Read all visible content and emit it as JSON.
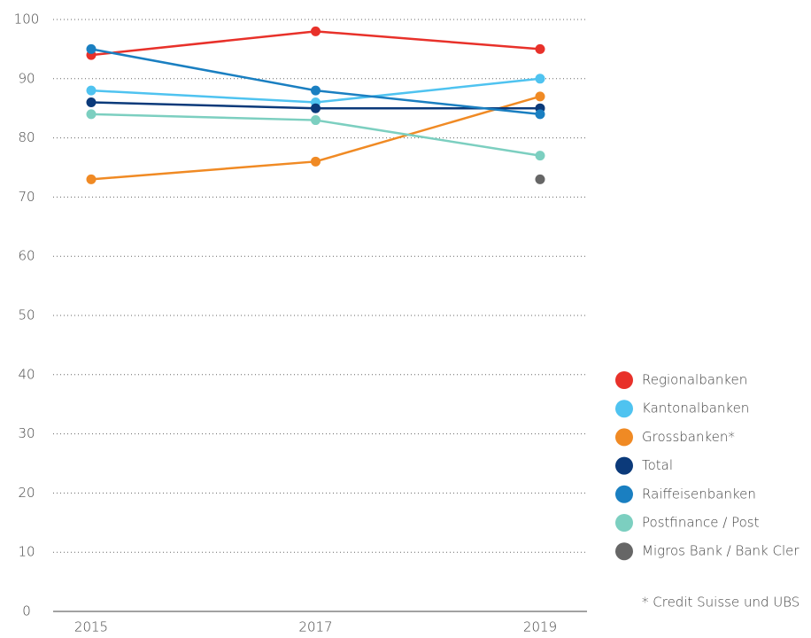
{
  "chart_data": {
    "type": "line",
    "categories": [
      "2015",
      "2017",
      "2019"
    ],
    "series": [
      {
        "name": "Regionalbanken",
        "color": "#e8312a",
        "values": [
          94,
          98,
          95
        ]
      },
      {
        "name": "Kantonalbanken",
        "color": "#4fc3f0",
        "values": [
          88,
          86,
          90
        ]
      },
      {
        "name": "Grossbanken*",
        "color": "#f08a24",
        "values": [
          73,
          76,
          87
        ]
      },
      {
        "name": "Total",
        "color": "#0b3a7a",
        "values": [
          86,
          85,
          85
        ]
      },
      {
        "name": "Raiffeisenbanken",
        "color": "#1a7fc1",
        "values": [
          95,
          88,
          84
        ]
      },
      {
        "name": "Postfinance / Post",
        "color": "#7ccfc0",
        "values": [
          84,
          83,
          77
        ]
      },
      {
        "name": "Migros Bank / Bank Cler",
        "color": "#666666",
        "values": [
          null,
          null,
          73
        ]
      }
    ],
    "ylim": [
      0,
      100
    ],
    "yticks": [
      0,
      10,
      20,
      30,
      40,
      50,
      60,
      70,
      80,
      90,
      100
    ],
    "grid": true,
    "legend": "right",
    "footnote": "* Credit Suisse und UBS"
  }
}
